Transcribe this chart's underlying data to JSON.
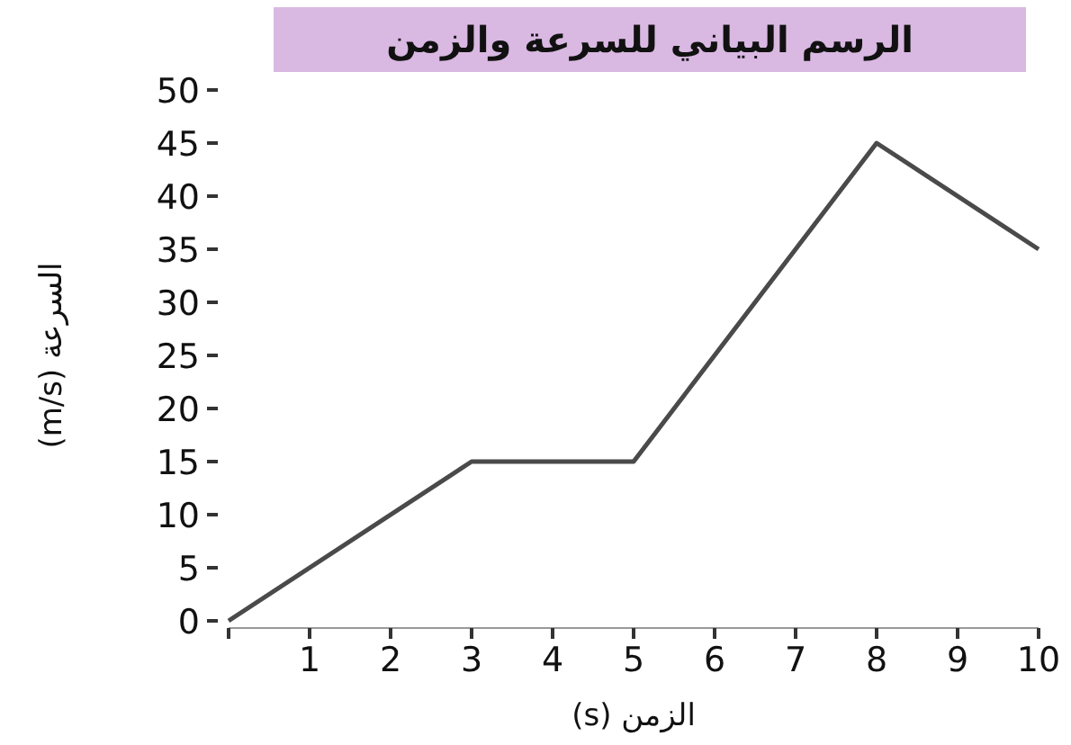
{
  "chart_data": {
    "type": "line",
    "title": "الرسم البياني للسرعة والزمن",
    "xlabel": "الزمن (s)",
    "ylabel": "السرعة (m/s)",
    "x": [
      0,
      3,
      5,
      8,
      10
    ],
    "series": [
      {
        "color": "#4a4a4a",
        "values": [
          0,
          15,
          15,
          45,
          35
        ]
      }
    ],
    "xlim": [
      0,
      10
    ],
    "xticks": [
      {
        "value": 0,
        "label": null
      },
      1,
      2,
      3,
      4,
      5,
      6,
      7,
      8,
      9,
      10
    ],
    "ylim": [
      0,
      50
    ],
    "yticks": [
      0,
      5,
      10,
      15,
      20,
      25,
      30,
      35,
      40,
      45,
      50
    ],
    "grid": false,
    "marker": "none",
    "line_style": "solid"
  }
}
